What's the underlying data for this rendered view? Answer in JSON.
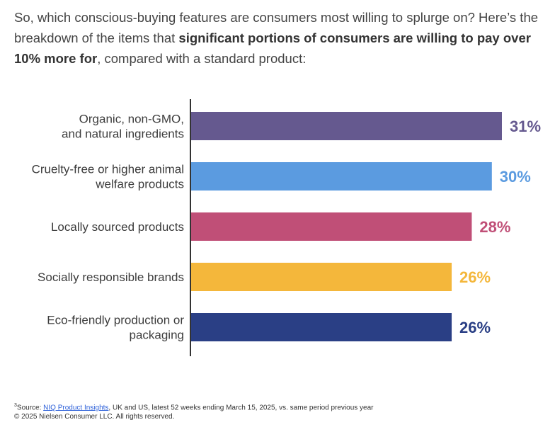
{
  "intro": {
    "part1": "So, which conscious-buying features are consumers most willing to splurge on? Here’s the breakdown of the items that ",
    "bold": "significant portions of consumers are willing to pay over 10% more for",
    "part2": ", compared with a standard product:"
  },
  "chart_data": {
    "type": "bar",
    "orientation": "horizontal",
    "categories": [
      [
        "Organic, non-GMO,",
        "and natural ingredients"
      ],
      [
        "Cruelty-free or higher animal",
        "welfare products"
      ],
      [
        "Locally sourced products"
      ],
      [
        "Socially responsible brands"
      ],
      [
        "Eco-friendly production or",
        "packaging"
      ]
    ],
    "values": [
      31,
      30,
      28,
      26,
      26
    ],
    "value_labels": [
      "31%",
      "30%",
      "28%",
      "26%",
      "26%"
    ],
    "colors": [
      "#65598f",
      "#5b9be0",
      "#c04f77",
      "#f4b73b",
      "#2a3f85"
    ],
    "title": "",
    "xlabel": "",
    "ylabel": "",
    "xlim": [
      0,
      31
    ],
    "grid": false,
    "legend": "none"
  },
  "footer": {
    "sup": "3",
    "source_prefix": "Source: ",
    "source_link": "NIQ Product Insights",
    "source_rest": ", UK and US, latest 52 weeks ending March 15, 2025, vs. same period previous year",
    "copyright": "© 2025 Nielsen Consumer LLC. All rights reserved."
  }
}
